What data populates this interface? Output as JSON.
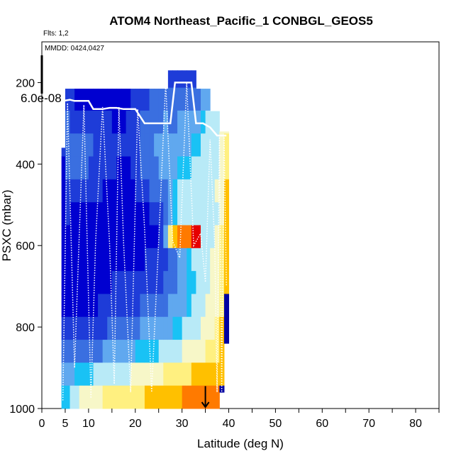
{
  "chart_data": {
    "type": "heatmap",
    "title": "ATOM4 Northeast_Pacific_1 CONBGL_GEOS5",
    "flights_label": "Flts: 1,2",
    "mmdd_label": "MMDD: 0424,0427",
    "colorbar_max_label": "6.0e-08",
    "xlabel": "Latitude (deg N)",
    "ylabel": "PSXC (mbar)",
    "xlim": [
      0,
      85
    ],
    "ylim": [
      1000,
      100
    ],
    "x_ticks": [
      0,
      5,
      10,
      20,
      30,
      40,
      50,
      60,
      70,
      80
    ],
    "x_minor_ticks": [
      15,
      25,
      35,
      45,
      55,
      65,
      75,
      85
    ],
    "y_ticks": [
      200,
      400,
      600,
      800,
      1000
    ],
    "marker_latitude": 35,
    "colormap": [
      "#0000a0",
      "#0000d0",
      "#1e3cd8",
      "#3a6fe0",
      "#60a8ef",
      "#19c2f5",
      "#b8eaf7",
      "#f7f7c8",
      "#fff080",
      "#ffc000",
      "#ff7a00",
      "#e60000"
    ],
    "columns": [
      {
        "lat": 3.6,
        "top": 520,
        "bottom": 965,
        "fills": [
          0.15,
          0.15,
          0.15,
          0.1,
          0.05,
          0.05,
          0.0,
          0.0,
          0.0,
          0.0,
          0.0,
          0.0,
          0.0,
          0.0,
          0.0,
          0.0
        ]
      },
      {
        "lat": 4.2,
        "top": 360,
        "bottom": 1000,
        "fills": [
          0.25,
          0.25,
          0.25,
          0.2,
          0.15,
          0.1,
          0.05,
          0.05,
          0.05,
          0.05,
          0.1,
          0.1,
          0.15,
          0.3,
          0.4,
          0.45
        ]
      },
      {
        "lat": 5.0,
        "top": 215,
        "bottom": 1000,
        "fills": [
          0.05,
          0.1,
          0.15,
          0.25,
          0.25,
          0.25,
          0.2,
          0.15,
          0.05,
          0.05,
          0.05,
          0.1,
          0.15,
          0.3,
          0.4,
          0.45
        ]
      },
      {
        "lat": 6.0,
        "top": 215,
        "bottom": 1000,
        "fills": [
          0.05,
          0.1,
          0.15,
          0.2,
          0.25,
          0.25,
          0.2,
          0.1,
          0.05,
          0.05,
          0.05,
          0.1,
          0.15,
          0.3,
          0.4,
          0.5
        ]
      },
      {
        "lat": 7.0,
        "top": 215,
        "bottom": 1000,
        "fills": [
          0.05,
          0.05,
          0.1,
          0.2,
          0.25,
          0.25,
          0.2,
          0.1,
          0.05,
          0.05,
          0.05,
          0.1,
          0.15,
          0.3,
          0.42,
          0.55
        ]
      },
      {
        "lat": 8.0,
        "top": 215,
        "bottom": 1000,
        "fills": [
          0.05,
          0.05,
          0.1,
          0.2,
          0.25,
          0.25,
          0.2,
          0.1,
          0.05,
          0.05,
          0.05,
          0.1,
          0.15,
          0.3,
          0.45,
          0.6
        ]
      },
      {
        "lat": 9.0,
        "top": 215,
        "bottom": 1000,
        "fills": [
          0.05,
          0.05,
          0.1,
          0.2,
          0.25,
          0.25,
          0.15,
          0.1,
          0.05,
          0.05,
          0.05,
          0.1,
          0.15,
          0.3,
          0.45,
          0.6
        ]
      },
      {
        "lat": 10.0,
        "top": 215,
        "bottom": 1000,
        "fills": [
          0.05,
          0.05,
          0.1,
          0.15,
          0.25,
          0.2,
          0.15,
          0.05,
          0.05,
          0.05,
          0.05,
          0.1,
          0.15,
          0.3,
          0.45,
          0.6
        ]
      },
      {
        "lat": 11.0,
        "top": 215,
        "bottom": 1000,
        "fills": [
          0.05,
          0.05,
          0.1,
          0.15,
          0.2,
          0.2,
          0.15,
          0.05,
          0.05,
          0.05,
          0.1,
          0.1,
          0.2,
          0.3,
          0.5,
          0.65
        ]
      },
      {
        "lat": 12.0,
        "top": 215,
        "bottom": 1000,
        "fills": [
          0.05,
          0.05,
          0.1,
          0.15,
          0.2,
          0.2,
          0.15,
          0.05,
          0.05,
          0.05,
          0.1,
          0.15,
          0.2,
          0.3,
          0.5,
          0.65
        ]
      },
      {
        "lat": 13.0,
        "top": 215,
        "bottom": 1000,
        "fills": [
          0.05,
          0.05,
          0.1,
          0.15,
          0.2,
          0.2,
          0.1,
          0.05,
          0.05,
          0.1,
          0.1,
          0.15,
          0.2,
          0.35,
          0.5,
          0.7
        ]
      },
      {
        "lat": 14.0,
        "top": 215,
        "bottom": 1000,
        "fills": [
          0.05,
          0.05,
          0.1,
          0.15,
          0.15,
          0.15,
          0.1,
          0.05,
          0.05,
          0.1,
          0.1,
          0.15,
          0.25,
          0.35,
          0.5,
          0.7
        ]
      },
      {
        "lat": 15.0,
        "top": 215,
        "bottom": 1000,
        "fills": [
          0.05,
          0.05,
          0.1,
          0.1,
          0.15,
          0.15,
          0.1,
          0.05,
          0.05,
          0.1,
          0.15,
          0.2,
          0.25,
          0.35,
          0.55,
          0.7
        ]
      },
      {
        "lat": 16.0,
        "top": 215,
        "bottom": 1000,
        "fills": [
          0.05,
          0.05,
          0.1,
          0.1,
          0.15,
          0.1,
          0.1,
          0.05,
          0.05,
          0.1,
          0.15,
          0.2,
          0.25,
          0.35,
          0.55,
          0.7
        ]
      },
      {
        "lat": 17.0,
        "top": 215,
        "bottom": 1000,
        "fills": [
          0.05,
          0.05,
          0.05,
          0.1,
          0.15,
          0.1,
          0.1,
          0.05,
          0.05,
          0.1,
          0.15,
          0.2,
          0.3,
          0.4,
          0.55,
          0.75
        ]
      },
      {
        "lat": 18.0,
        "top": 215,
        "bottom": 1000,
        "fills": [
          0.05,
          0.05,
          0.1,
          0.15,
          0.15,
          0.1,
          0.1,
          0.05,
          0.05,
          0.1,
          0.15,
          0.2,
          0.3,
          0.4,
          0.55,
          0.75
        ]
      },
      {
        "lat": 19.0,
        "top": 215,
        "bottom": 1000,
        "fills": [
          0.1,
          0.1,
          0.15,
          0.2,
          0.15,
          0.15,
          0.1,
          0.05,
          0.05,
          0.1,
          0.15,
          0.2,
          0.3,
          0.4,
          0.6,
          0.75
        ]
      },
      {
        "lat": 20.0,
        "top": 215,
        "bottom": 1000,
        "fills": [
          0.1,
          0.15,
          0.2,
          0.2,
          0.2,
          0.2,
          0.15,
          0.05,
          0.05,
          0.1,
          0.15,
          0.2,
          0.3,
          0.45,
          0.6,
          0.75
        ]
      },
      {
        "lat": 21.0,
        "top": 215,
        "bottom": 1000,
        "fills": [
          0.1,
          0.15,
          0.2,
          0.25,
          0.25,
          0.25,
          0.15,
          0.1,
          0.05,
          0.1,
          0.15,
          0.25,
          0.35,
          0.45,
          0.6,
          0.75
        ]
      },
      {
        "lat": 22.0,
        "top": 215,
        "bottom": 1000,
        "fills": [
          0.1,
          0.15,
          0.2,
          0.25,
          0.3,
          0.3,
          0.2,
          0.1,
          0.1,
          0.15,
          0.2,
          0.25,
          0.35,
          0.45,
          0.6,
          0.8
        ]
      },
      {
        "lat": 23.0,
        "top": 215,
        "bottom": 1000,
        "fills": [
          0.15,
          0.2,
          0.25,
          0.3,
          0.3,
          0.3,
          0.25,
          0.15,
          0.1,
          0.15,
          0.2,
          0.25,
          0.35,
          0.45,
          0.65,
          0.8
        ]
      },
      {
        "lat": 24.0,
        "top": 215,
        "bottom": 1000,
        "fills": [
          0.15,
          0.2,
          0.25,
          0.3,
          0.35,
          0.3,
          0.25,
          0.15,
          0.1,
          0.15,
          0.2,
          0.3,
          0.35,
          0.45,
          0.65,
          0.8
        ]
      },
      {
        "lat": 25.0,
        "top": 215,
        "bottom": 1000,
        "fills": [
          0.15,
          0.2,
          0.3,
          0.3,
          0.35,
          0.35,
          0.3,
          0.2,
          0.15,
          0.15,
          0.2,
          0.3,
          0.4,
          0.5,
          0.65,
          0.8
        ]
      },
      {
        "lat": 26.0,
        "top": 215,
        "bottom": 1000,
        "fills": [
          0.2,
          0.25,
          0.3,
          0.35,
          0.35,
          0.35,
          0.3,
          0.25,
          0.4,
          0.2,
          0.25,
          0.3,
          0.4,
          0.5,
          0.7,
          0.85
        ]
      },
      {
        "lat": 27.0,
        "top": 170,
        "bottom": 1000,
        "fills": [
          0.15,
          0.2,
          0.25,
          0.3,
          0.35,
          0.4,
          0.4,
          0.35,
          0.7,
          0.25,
          0.25,
          0.35,
          0.4,
          0.5,
          0.7,
          0.85
        ]
      },
      {
        "lat": 28.0,
        "top": 170,
        "bottom": 1000,
        "fills": [
          0.15,
          0.2,
          0.25,
          0.3,
          0.35,
          0.4,
          0.45,
          0.45,
          0.8,
          0.3,
          0.3,
          0.35,
          0.45,
          0.55,
          0.7,
          0.85
        ]
      },
      {
        "lat": 29.0,
        "top": 170,
        "bottom": 1000,
        "fills": [
          0.15,
          0.2,
          0.25,
          0.35,
          0.4,
          0.45,
          0.5,
          0.5,
          0.88,
          0.35,
          0.35,
          0.4,
          0.45,
          0.55,
          0.75,
          0.85
        ]
      },
      {
        "lat": 30.0,
        "top": 170,
        "bottom": 1000,
        "fills": [
          0.15,
          0.2,
          0.25,
          0.35,
          0.4,
          0.45,
          0.5,
          0.5,
          0.92,
          0.4,
          0.4,
          0.4,
          0.5,
          0.6,
          0.75,
          0.88
        ]
      },
      {
        "lat": 31.0,
        "top": 170,
        "bottom": 1000,
        "fills": [
          0.15,
          0.2,
          0.3,
          0.35,
          0.4,
          0.45,
          0.5,
          0.55,
          0.95,
          0.45,
          0.45,
          0.45,
          0.5,
          0.6,
          0.75,
          0.88
        ]
      },
      {
        "lat": 32.0,
        "top": 170,
        "bottom": 1000,
        "fills": [
          0.15,
          0.2,
          0.3,
          0.4,
          0.45,
          0.5,
          0.55,
          0.55,
          1.0,
          0.5,
          0.45,
          0.5,
          0.55,
          0.6,
          0.8,
          0.88
        ]
      },
      {
        "lat": 33.0,
        "top": 215,
        "bottom": 1000,
        "fills": [
          0.15,
          0.25,
          0.3,
          0.4,
          0.45,
          0.5,
          0.55,
          0.55,
          1.0,
          0.5,
          0.5,
          0.5,
          0.55,
          0.65,
          0.8,
          0.9
        ]
      },
      {
        "lat": 34.0,
        "top": 215,
        "bottom": 1000,
        "fills": [
          0.2,
          0.25,
          0.35,
          0.45,
          0.5,
          0.55,
          0.55,
          0.5,
          0.55,
          0.55,
          0.55,
          0.55,
          0.6,
          0.65,
          0.8,
          0.9
        ]
      },
      {
        "lat": 35.0,
        "top": 215,
        "bottom": 1000,
        "fills": [
          0.2,
          0.3,
          0.4,
          0.5,
          0.55,
          0.55,
          0.55,
          0.5,
          0.5,
          0.55,
          0.55,
          0.6,
          0.6,
          0.7,
          0.82,
          0.9
        ]
      },
      {
        "lat": 36.0,
        "top": 270,
        "bottom": 1000,
        "fills": [
          0.25,
          0.3,
          0.45,
          0.55,
          0.55,
          0.55,
          0.55,
          0.5,
          0.55,
          0.6,
          0.6,
          0.6,
          0.65,
          0.7,
          0.85,
          0.9
        ]
      },
      {
        "lat": 37.0,
        "top": 270,
        "bottom": 1000,
        "fills": [
          0.3,
          0.35,
          0.5,
          0.55,
          0.55,
          0.55,
          0.6,
          0.55,
          0.6,
          0.65,
          0.65,
          0.65,
          0.7,
          0.75,
          0.85,
          0.9
        ]
      },
      {
        "lat": 38.0,
        "top": 320,
        "bottom": 960,
        "fills": [
          0.35,
          0.45,
          0.55,
          0.6,
          0.62,
          0.62,
          0.65,
          0.6,
          0.7,
          0.7,
          0.7,
          0.75,
          0.8,
          0.8,
          0.85,
          0.0
        ]
      },
      {
        "lat": 39.0,
        "top": 320,
        "bottom": 840,
        "fills": [
          0.4,
          0.5,
          0.6,
          0.65,
          0.7,
          0.75,
          0.8,
          0.8,
          0.85,
          0.85,
          0.85,
          0.0,
          0.0,
          0.0,
          0.0,
          0.0
        ]
      }
    ],
    "flight_track": {
      "latitudes": [
        4.5,
        5.5,
        7.0,
        9.0,
        10.5,
        11.5,
        13.0,
        14.5,
        15.5,
        16.5,
        17.5,
        19.0,
        20.5,
        22.0,
        23.5,
        25.0,
        26.5,
        28.0,
        29.5,
        31.0,
        32.5,
        34.0,
        35.0,
        36.0,
        37.0,
        37.5,
        38.0,
        38.5,
        39.0,
        39.5
      ],
      "pressures": [
        980,
        250,
        900,
        255,
        975,
        590,
        260,
        595,
        940,
        260,
        595,
        960,
        265,
        560,
        960,
        590,
        200,
        590,
        630,
        200,
        600,
        570,
        690,
        340,
        600,
        960,
        330,
        960,
        330,
        700
      ]
    },
    "ceiling_track": {
      "latitudes": [
        4.5,
        6.0,
        7.0,
        10.0,
        11.0,
        13.0,
        14.5,
        16.0,
        17.5,
        20.0,
        22.0,
        25.0,
        27.5,
        28.5,
        30.5,
        32.0,
        33.0,
        34.5,
        36.0,
        37.5,
        38.5,
        39.5
      ],
      "pressures": [
        245,
        242,
        245,
        245,
        265,
        265,
        262,
        262,
        265,
        265,
        300,
        300,
        300,
        200,
        200,
        200,
        300,
        300,
        310,
        330,
        330,
        330
      ]
    }
  }
}
